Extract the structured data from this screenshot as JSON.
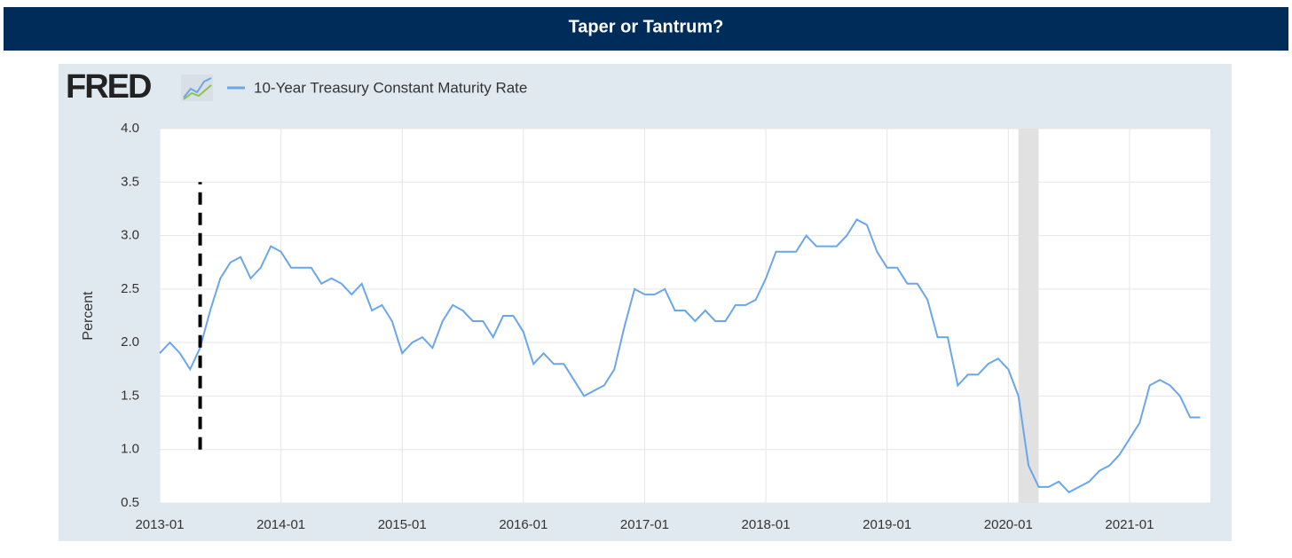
{
  "chart_data": {
    "type": "line",
    "title": "Taper or Tantrum?",
    "logo": "FRED",
    "y_label": "Percent",
    "x": [
      "2013-01",
      "2013-02",
      "2013-03",
      "2013-04",
      "2013-05",
      "2013-06",
      "2013-07",
      "2013-08",
      "2013-09",
      "2013-10",
      "2013-11",
      "2013-12",
      "2014-01",
      "2014-02",
      "2014-03",
      "2014-04",
      "2014-05",
      "2014-06",
      "2014-07",
      "2014-08",
      "2014-09",
      "2014-10",
      "2014-11",
      "2014-12",
      "2015-01",
      "2015-02",
      "2015-03",
      "2015-04",
      "2015-05",
      "2015-06",
      "2015-07",
      "2015-08",
      "2015-09",
      "2015-10",
      "2015-11",
      "2015-12",
      "2016-01",
      "2016-02",
      "2016-03",
      "2016-04",
      "2016-05",
      "2016-06",
      "2016-07",
      "2016-08",
      "2016-09",
      "2016-10",
      "2016-11",
      "2016-12",
      "2017-01",
      "2017-02",
      "2017-03",
      "2017-04",
      "2017-05",
      "2017-06",
      "2017-07",
      "2017-08",
      "2017-09",
      "2017-10",
      "2017-11",
      "2017-12",
      "2018-01",
      "2018-02",
      "2018-03",
      "2018-04",
      "2018-05",
      "2018-06",
      "2018-07",
      "2018-08",
      "2018-09",
      "2018-10",
      "2018-11",
      "2018-12",
      "2019-01",
      "2019-02",
      "2019-03",
      "2019-04",
      "2019-05",
      "2019-06",
      "2019-07",
      "2019-08",
      "2019-09",
      "2019-10",
      "2019-11",
      "2019-12",
      "2020-01",
      "2020-02",
      "2020-03",
      "2020-04",
      "2020-05",
      "2020-06",
      "2020-07",
      "2020-08",
      "2020-09",
      "2020-10",
      "2020-11",
      "2020-12",
      "2021-01",
      "2021-02",
      "2021-03",
      "2021-04",
      "2021-05",
      "2021-06",
      "2021-07",
      "2021-08"
    ],
    "series": [
      {
        "name": "10-Year Treasury Constant Maturity Rate",
        "color": "#6aa6ea",
        "values": [
          1.9,
          2.0,
          1.9,
          1.75,
          1.95,
          2.3,
          2.6,
          2.75,
          2.8,
          2.6,
          2.7,
          2.9,
          2.85,
          2.7,
          2.7,
          2.7,
          2.55,
          2.6,
          2.55,
          2.45,
          2.55,
          2.3,
          2.35,
          2.2,
          1.9,
          2.0,
          2.05,
          1.95,
          2.2,
          2.35,
          2.3,
          2.2,
          2.2,
          2.05,
          2.25,
          2.25,
          2.1,
          1.8,
          1.9,
          1.8,
          1.8,
          1.65,
          1.5,
          1.55,
          1.6,
          1.75,
          2.15,
          2.5,
          2.45,
          2.45,
          2.5,
          2.3,
          2.3,
          2.2,
          2.3,
          2.2,
          2.2,
          2.35,
          2.35,
          2.4,
          2.6,
          2.85,
          2.85,
          2.85,
          3.0,
          2.9,
          2.9,
          2.9,
          3.0,
          3.15,
          3.1,
          2.85,
          2.7,
          2.7,
          2.55,
          2.55,
          2.4,
          2.05,
          2.05,
          1.6,
          1.7,
          1.7,
          1.8,
          1.85,
          1.75,
          1.5,
          0.85,
          0.65,
          0.65,
          0.7,
          0.6,
          0.65,
          0.7,
          0.8,
          0.85,
          0.95,
          1.1,
          1.25,
          1.6,
          1.65,
          1.6,
          1.5,
          1.3,
          1.3
        ]
      }
    ],
    "xlim": [
      "2013-01",
      "2021-09"
    ],
    "xticks": [
      "2013-01",
      "2014-01",
      "2015-01",
      "2016-01",
      "2017-01",
      "2018-01",
      "2019-01",
      "2020-01",
      "2021-01"
    ],
    "ylim": [
      0.5,
      4.0
    ],
    "yticks": [
      0.5,
      {
        "value": 1,
        "label": "1.0"
      },
      1.5,
      {
        "value": 2,
        "label": "2.0"
      },
      2.5,
      {
        "value": 3,
        "label": "3.0"
      },
      3.5,
      {
        "value": 4,
        "label": "4.0"
      }
    ],
    "grid": true,
    "shaded_period": [
      "2020-02",
      "2020-04"
    ],
    "vline": {
      "x": "2013-05",
      "ymin": 1.0,
      "ymax": 3.5
    }
  }
}
